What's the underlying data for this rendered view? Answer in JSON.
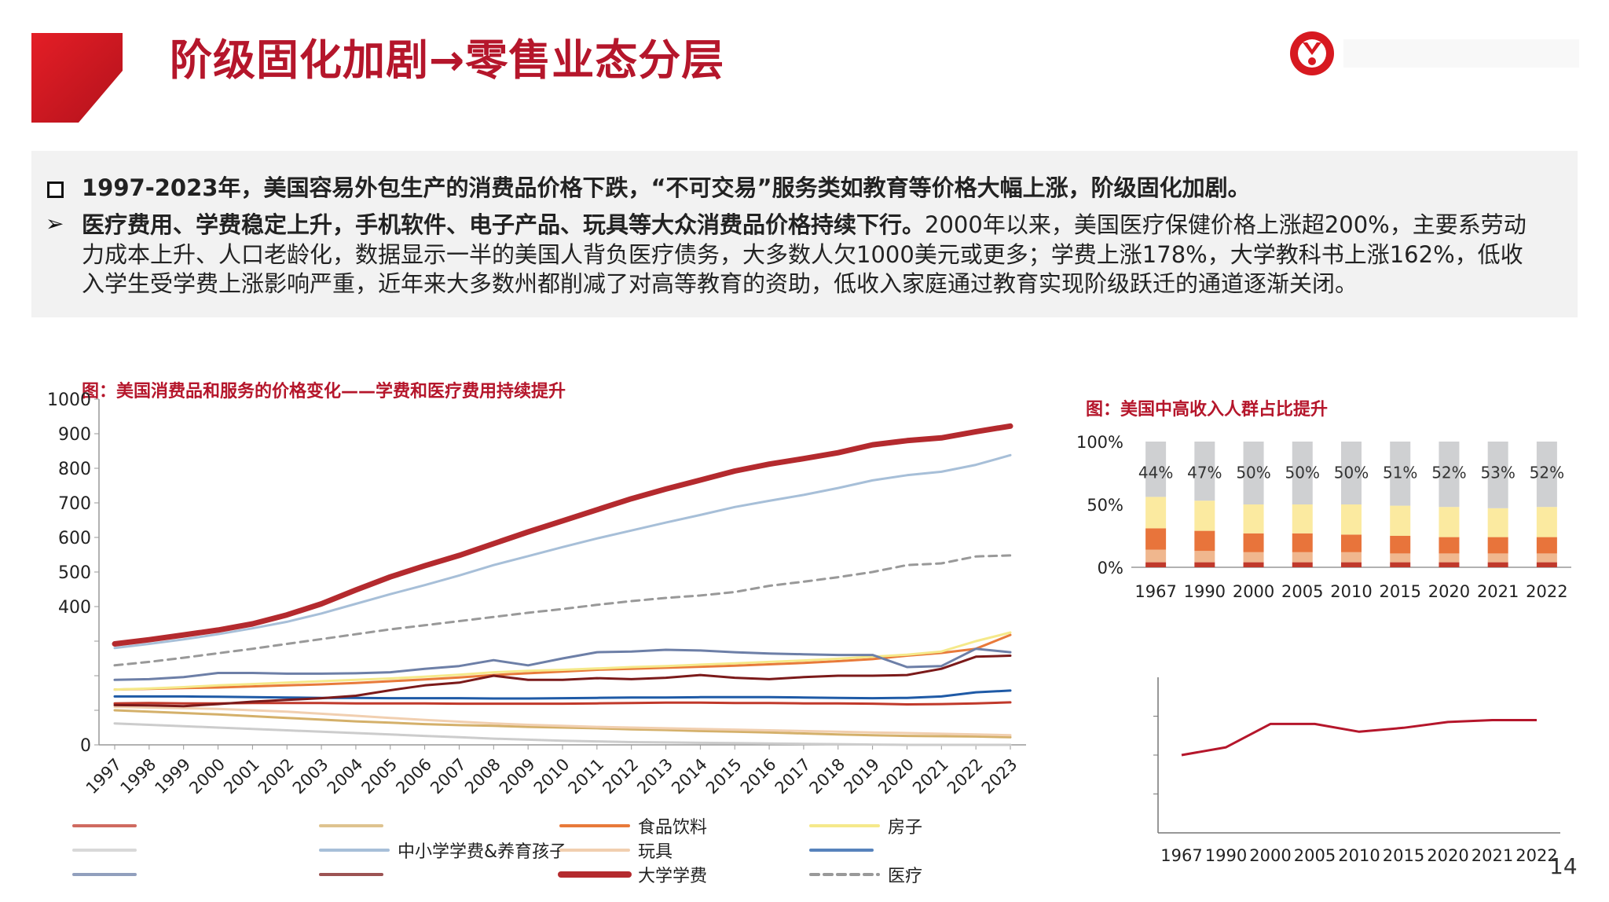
{
  "header": {
    "title": "阶级固化加剧→零售业态分层",
    "accent": "#b5162b"
  },
  "summary": {
    "bullet1_bold": "1997-2023年，美国容易外包生产的消费品价格下跌，“不可交易”服务类如教育等价格大幅上涨，阶级固化加剧。",
    "bullet2_bold": "医疗费用、学费稳定上升，手机软件、电子产品、玩具等大众消费品价格持续下行。",
    "bullet2_line1_rest": "2000年以来，美国医疗保健价格上涨超200%，主要系劳动",
    "bullet2_line2": "力成本上升、人口老龄化，数据显示一半的美国人背负医疗债务，大多数人欠1000美元或更多；学费上涨178%，大学教科书上涨162%，低收",
    "bullet2_line3": "入学生受学费上涨影响严重，近年来大多数州都削减了对高等教育的资助，低收入家庭通过教育实现阶级跃迁的通道逐渐关闭。"
  },
  "page_number": "14",
  "chart_data": [
    {
      "type": "line",
      "title": "图：美国消费品和服务的价格变化——学费和医疗费用持续提升",
      "x": [
        "1997",
        "1998",
        "1999",
        "2000",
        "2001",
        "2002",
        "2003",
        "2004",
        "2005",
        "2006",
        "2007",
        "2008",
        "2009",
        "2010",
        "2011",
        "2012",
        "2013",
        "2014",
        "2015",
        "2016",
        "2017",
        "2018",
        "2019",
        "2020",
        "2021",
        "2022",
        "2023"
      ],
      "y_ticks": [
        "1000",
        "900",
        "800",
        "700",
        "600",
        "500",
        "400",
        "",
        "",
        "",
        "0"
      ],
      "ylim": [
        0,
        1000
      ],
      "grid": false,
      "legend": "bottom",
      "series": [
        {
          "name": "",
          "color": "#c0392b",
          "width": 3,
          "dash": "",
          "values": [
            120,
            121,
            120,
            120,
            121,
            121,
            121,
            120,
            120,
            120,
            119,
            119,
            119,
            119,
            120,
            121,
            122,
            122,
            121,
            121,
            120,
            120,
            119,
            117,
            118,
            120,
            123
          ]
        },
        {
          "name": "",
          "color": "#d4b06a",
          "width": 3,
          "dash": "",
          "values": [
            100,
            96,
            92,
            88,
            83,
            78,
            73,
            68,
            64,
            60,
            57,
            55,
            52,
            50,
            48,
            45,
            43,
            40,
            38,
            36,
            33,
            30,
            28,
            26,
            25,
            24,
            22
          ]
        },
        {
          "name": "食品饮料",
          "color": "#e87a3a",
          "width": 3,
          "dash": "",
          "values": [
            160,
            162,
            164,
            166,
            169,
            172,
            175,
            179,
            184,
            189,
            195,
            202,
            207,
            212,
            217,
            220,
            223,
            226,
            229,
            233,
            237,
            242,
            248,
            258,
            266,
            278,
            318
          ]
        },
        {
          "name": "房子",
          "color": "#f5e98a",
          "width": 3,
          "dash": "",
          "values": [
            160,
            163,
            167,
            172,
            176,
            180,
            184,
            188,
            192,
            197,
            203,
            210,
            214,
            217,
            221,
            225,
            228,
            232,
            236,
            240,
            244,
            249,
            255,
            261,
            270,
            300,
            325
          ]
        },
        {
          "name": "",
          "color": "#cccccc",
          "width": 3,
          "dash": "",
          "values": [
            62,
            58,
            54,
            50,
            46,
            42,
            38,
            34,
            30,
            26,
            22,
            18,
            15,
            12,
            10,
            8,
            7,
            6,
            5,
            4,
            3,
            2,
            1,
            0,
            0,
            0,
            0
          ]
        },
        {
          "name": "中小学学费&养育孩子",
          "color": "#a7bfd8",
          "width": 3,
          "dash": "",
          "values": [
            280,
            292,
            305,
            320,
            337,
            356,
            380,
            408,
            436,
            462,
            490,
            520,
            546,
            572,
            597,
            620,
            643,
            665,
            688,
            706,
            723,
            743,
            765,
            780,
            790,
            810,
            838
          ]
        },
        {
          "name": "玩具",
          "color": "#f1cfb0",
          "width": 3,
          "dash": "",
          "values": [
            110,
            108,
            106,
            104,
            100,
            96,
            90,
            84,
            78,
            72,
            67,
            62,
            58,
            55,
            52,
            50,
            48,
            46,
            44,
            42,
            40,
            38,
            36,
            34,
            32,
            30,
            28
          ]
        },
        {
          "name": "",
          "color": "#1f5aa6",
          "width": 3,
          "dash": "",
          "values": [
            140,
            140,
            140,
            139,
            138,
            137,
            136,
            136,
            135,
            135,
            135,
            134,
            134,
            135,
            136,
            137,
            137,
            138,
            138,
            138,
            137,
            136,
            135,
            136,
            140,
            152,
            157
          ]
        },
        {
          "name": "",
          "color": "#6d7fa7",
          "width": 3,
          "dash": "",
          "values": [
            188,
            190,
            196,
            208,
            208,
            206,
            206,
            207,
            210,
            220,
            228,
            245,
            230,
            250,
            268,
            270,
            275,
            273,
            268,
            264,
            262,
            260,
            260,
            225,
            228,
            278,
            268
          ]
        },
        {
          "name": "",
          "color": "#7b1a1a",
          "width": 3,
          "dash": "",
          "values": [
            115,
            114,
            112,
            118,
            125,
            130,
            135,
            142,
            158,
            172,
            180,
            200,
            188,
            188,
            193,
            190,
            194,
            202,
            194,
            190,
            196,
            200,
            200,
            202,
            220,
            255,
            258
          ]
        },
        {
          "name": "大学学费",
          "color": "#b42a2e",
          "width": 7,
          "dash": "",
          "values": [
            292,
            304,
            318,
            332,
            350,
            376,
            408,
            448,
            486,
            518,
            548,
            582,
            616,
            648,
            680,
            712,
            740,
            766,
            792,
            812,
            828,
            845,
            868,
            880,
            888,
            906,
            922
          ]
        },
        {
          "name": "医疗",
          "color": "#999999",
          "width": 3,
          "dash": "10,7",
          "values": [
            230,
            240,
            252,
            265,
            278,
            292,
            306,
            320,
            334,
            346,
            358,
            370,
            382,
            393,
            405,
            416,
            425,
            432,
            442,
            460,
            472,
            485,
            500,
            520,
            525,
            545,
            548
          ]
        }
      ]
    },
    {
      "type": "bar",
      "stacked": true,
      "title": "图：美国中高收入人群占比提升",
      "categories": [
        "1967",
        "1990",
        "2000",
        "2005",
        "2010",
        "2015",
        "2020",
        "2021",
        "2022"
      ],
      "y_ticks": [
        "100%",
        "50%",
        "0%"
      ],
      "ylim": [
        0,
        100
      ],
      "top_labels": [
        "44%",
        "47%",
        "50%",
        "50%",
        "50%",
        "51%",
        "52%",
        "53%",
        "52%"
      ],
      "series": [
        {
          "name": "",
          "color": "#c0392b",
          "values": [
            4,
            4,
            4,
            4,
            4,
            4,
            4,
            4,
            4
          ]
        },
        {
          "name": "",
          "color": "#f0b78e",
          "values": [
            10,
            9,
            8,
            8,
            8,
            7,
            7,
            7,
            7
          ]
        },
        {
          "name": "",
          "color": "#e8743b",
          "values": [
            17,
            16,
            15,
            15,
            14,
            14,
            13,
            13,
            13
          ]
        },
        {
          "name": "",
          "color": "#fbeaa0",
          "values": [
            25,
            24,
            23,
            23,
            24,
            24,
            24,
            23,
            24
          ]
        },
        {
          "name": "",
          "color": "#cfd0d2",
          "values": [
            44,
            47,
            50,
            50,
            50,
            51,
            52,
            53,
            52
          ]
        }
      ]
    },
    {
      "type": "line",
      "x": [
        "1967",
        "1990",
        "2000",
        "2005",
        "2010",
        "2015",
        "2020",
        "2021",
        "2022"
      ],
      "series": [
        {
          "name": "",
          "color": "#b5162b",
          "values": [
            0.6,
            0.62,
            0.68,
            0.68,
            0.66,
            0.67,
            0.685,
            0.69,
            0.69
          ]
        }
      ],
      "ylim": [
        0.4,
        0.8
      ]
    }
  ]
}
